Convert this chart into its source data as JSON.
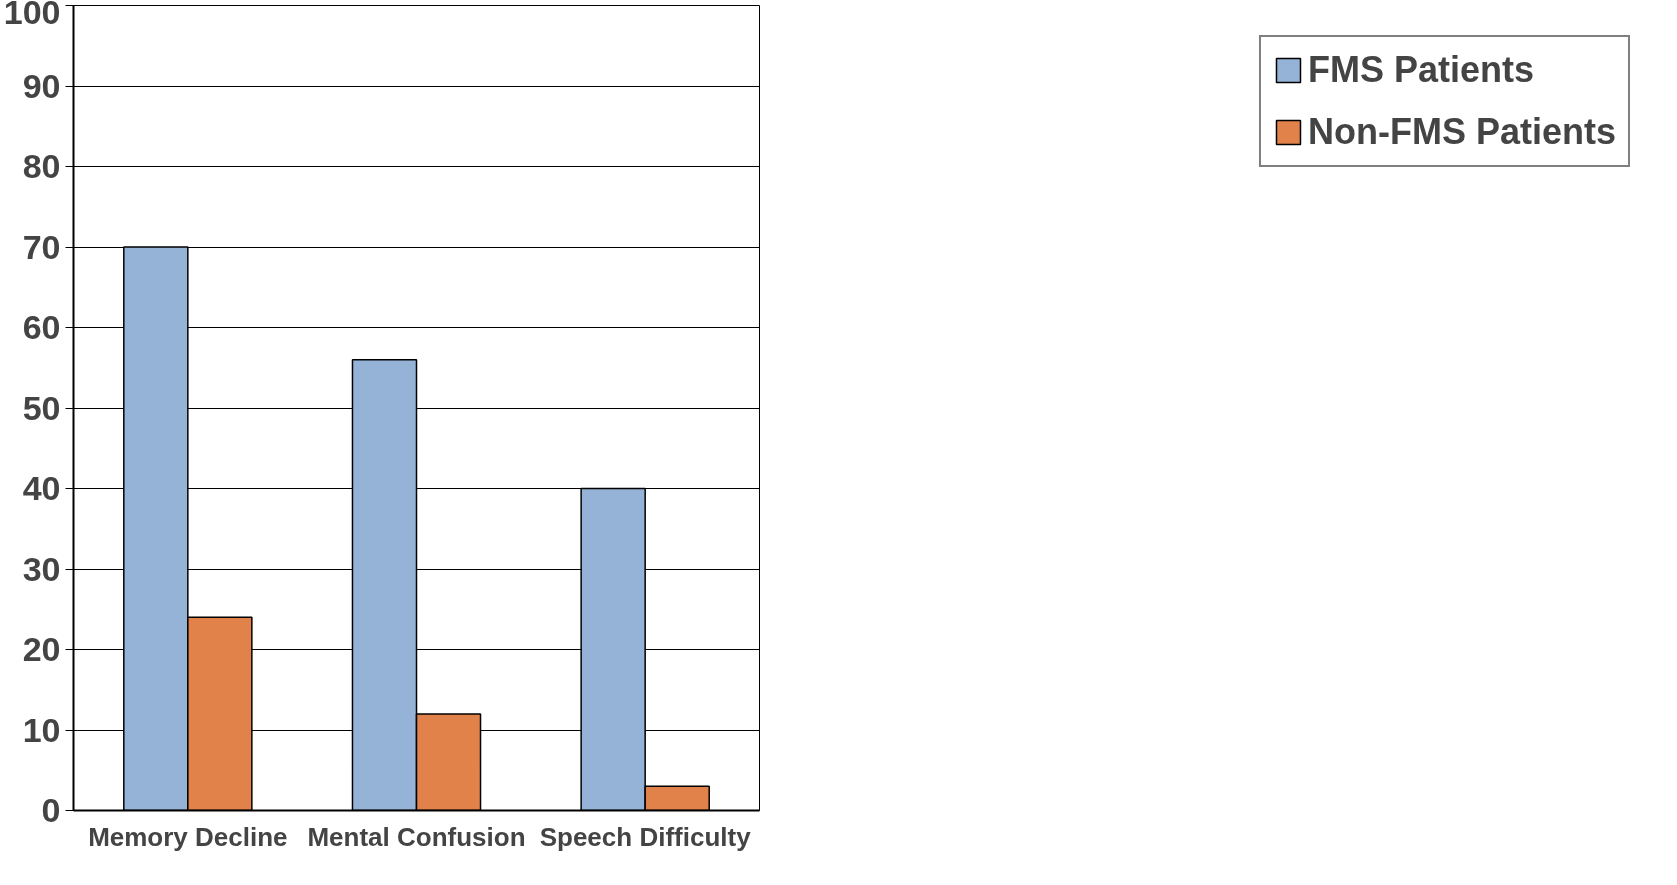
{
  "chart_data": {
    "type": "bar",
    "categories": [
      "Memory Decline",
      "Mental Confusion",
      "Speech Difficulty"
    ],
    "series": [
      {
        "name": "FMS Patients",
        "color": "#95b3d7",
        "values": [
          70,
          56,
          40
        ]
      },
      {
        "name": "Non-FMS Patients",
        "color": "#e0824a",
        "values": [
          24,
          12,
          3
        ]
      }
    ],
    "ylim": [
      0,
      100
    ],
    "yticks": [
      0,
      10,
      20,
      30,
      40,
      50,
      60,
      70,
      80,
      90,
      100
    ],
    "grid": "y",
    "legend": "right"
  }
}
